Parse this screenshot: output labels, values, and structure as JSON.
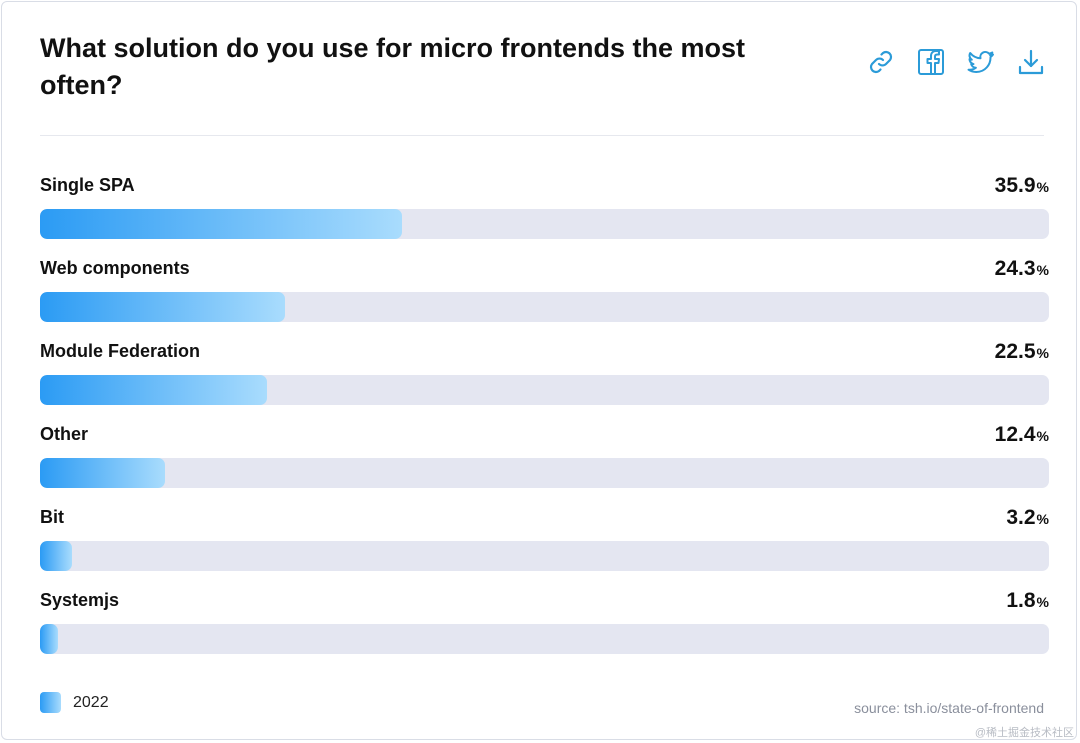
{
  "header": {
    "title": "What solution do you use for micro frontends the most often?"
  },
  "share": {
    "icons": [
      "link-icon",
      "facebook-icon",
      "twitter-icon",
      "download-icon"
    ],
    "color": "#2b9bd8"
  },
  "chart_data": {
    "type": "bar",
    "orientation": "horizontal",
    "categories": [
      "Single SPA",
      "Web components",
      "Module Federation",
      "Other",
      "Bit",
      "Systemjs"
    ],
    "series": [
      {
        "name": "2022",
        "values": [
          35.9,
          24.3,
          22.5,
          12.4,
          3.2,
          1.8
        ]
      }
    ],
    "value_suffix": "%",
    "xlim": [
      0,
      100
    ],
    "legend_position": "bottom-left",
    "bar_color_start": "#2b9bf4",
    "bar_color_end": "#a9dcfd",
    "track_color": "#e4e6f1"
  },
  "footer": {
    "source": "source: tsh.io/state-of-frontend"
  },
  "watermark": "@稀土掘金技术社区"
}
